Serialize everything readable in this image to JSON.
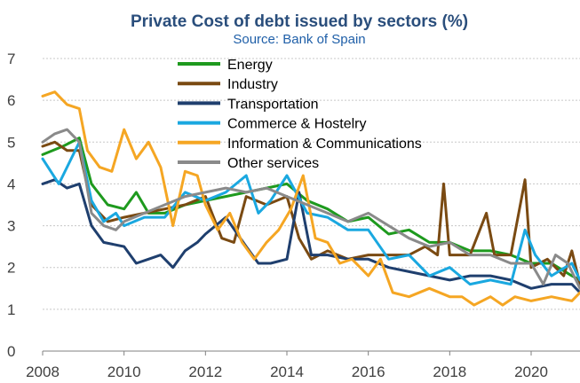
{
  "chart_data": {
    "type": "line",
    "title": "Private Cost of debt issued by sectors (%)",
    "subtitle": "Source: Bank of Spain",
    "xlabel": "",
    "ylabel": "",
    "xlim": [
      2008,
      2021.2
    ],
    "ylim": [
      0,
      7
    ],
    "x_ticks": [
      "2008",
      "2010",
      "2012",
      "2014",
      "2016",
      "2018",
      "2020"
    ],
    "y_ticks": [
      "0",
      "1",
      "2",
      "3",
      "4",
      "5",
      "6",
      "7"
    ],
    "grid": "horizontal-dashed",
    "legend_position": "top-center",
    "series": [
      {
        "name": "Energy",
        "color": "#1e9a1e",
        "x": [
          2008,
          2008.5,
          2008.9,
          2009.2,
          2009.6,
          2010,
          2010.3,
          2010.6,
          2011,
          2011.5,
          2012,
          2012.5,
          2013,
          2013.5,
          2014,
          2014.5,
          2015,
          2015.5,
          2016,
          2016.5,
          2017,
          2017.5,
          2018,
          2018.5,
          2019,
          2019.5,
          2020,
          2020.5,
          2021,
          2021.2
        ],
        "values": [
          4.7,
          4.9,
          5.1,
          4.0,
          3.5,
          3.4,
          3.8,
          3.3,
          3.3,
          3.5,
          3.6,
          3.7,
          3.8,
          3.9,
          4.0,
          3.6,
          3.4,
          3.1,
          3.2,
          2.8,
          2.9,
          2.6,
          2.6,
          2.4,
          2.4,
          2.3,
          2.1,
          2.1,
          1.8,
          1.7
        ]
      },
      {
        "name": "Industry",
        "color": "#7a4a12",
        "x": [
          2008,
          2008.3,
          2008.6,
          2008.9,
          2009.2,
          2009.6,
          2010,
          2010.5,
          2011,
          2011.5,
          2012,
          2012.4,
          2012.7,
          2013,
          2013.5,
          2014,
          2014.3,
          2014.6,
          2015,
          2015.5,
          2016,
          2016.5,
          2017,
          2017.4,
          2017.7,
          2017.85,
          2018,
          2018.5,
          2018.9,
          2019.1,
          2019.5,
          2019.85,
          2020,
          2020.4,
          2020.8,
          2021,
          2021.2
        ],
        "values": [
          4.9,
          5.0,
          4.8,
          4.8,
          3.5,
          3.1,
          3.2,
          3.3,
          3.4,
          3.5,
          3.7,
          2.7,
          2.6,
          3.7,
          3.5,
          3.7,
          2.7,
          2.2,
          2.4,
          2.2,
          2.3,
          2.3,
          2.3,
          2.5,
          2.3,
          4.0,
          2.3,
          2.3,
          3.3,
          2.3,
          2.3,
          4.1,
          2.0,
          2.2,
          1.8,
          2.4,
          1.6
        ]
      },
      {
        "name": "Transportation",
        "color": "#1f3f6e",
        "x": [
          2008,
          2008.3,
          2008.6,
          2008.9,
          2009.2,
          2009.5,
          2010,
          2010.3,
          2010.6,
          2010.9,
          2011.2,
          2011.5,
          2011.8,
          2012,
          2012.5,
          2013,
          2013.3,
          2013.6,
          2014,
          2014.3,
          2014.6,
          2015,
          2015.5,
          2016,
          2016.5,
          2017,
          2017.5,
          2018,
          2018.5,
          2019,
          2019.5,
          2020,
          2020.5,
          2021,
          2021.2
        ],
        "values": [
          4.0,
          4.1,
          3.9,
          4.0,
          3.0,
          2.6,
          2.5,
          2.1,
          2.2,
          2.3,
          2.0,
          2.4,
          2.6,
          2.8,
          3.2,
          2.5,
          2.1,
          2.1,
          2.2,
          3.8,
          2.3,
          2.3,
          2.2,
          2.2,
          2.0,
          1.9,
          1.8,
          1.7,
          1.8,
          1.8,
          1.7,
          1.5,
          1.6,
          1.6,
          1.4
        ]
      },
      {
        "name": "Commerce & Hostelry",
        "color": "#1aa8e0",
        "x": [
          2008,
          2008.4,
          2008.9,
          2009.2,
          2009.5,
          2009.8,
          2010,
          2010.5,
          2011,
          2011.5,
          2012,
          2012.5,
          2013,
          2013.3,
          2013.6,
          2014,
          2014.5,
          2015,
          2015.5,
          2016,
          2016.5,
          2017,
          2017.5,
          2018,
          2018.5,
          2019,
          2019.5,
          2019.85,
          2020.1,
          2020.5,
          2021,
          2021.2
        ],
        "values": [
          4.6,
          4.0,
          5.0,
          3.6,
          3.1,
          3.3,
          3.0,
          3.2,
          3.2,
          3.8,
          3.6,
          3.8,
          4.2,
          3.3,
          3.6,
          4.2,
          3.3,
          3.2,
          2.9,
          2.9,
          2.2,
          2.3,
          1.8,
          2.0,
          1.6,
          1.7,
          1.6,
          2.9,
          2.3,
          1.8,
          2.1,
          1.7
        ]
      },
      {
        "name": "Information & Communications",
        "color": "#f5a623",
        "x": [
          2008,
          2008.3,
          2008.6,
          2008.9,
          2009.1,
          2009.4,
          2009.7,
          2010,
          2010.3,
          2010.6,
          2010.9,
          2011.2,
          2011.5,
          2011.8,
          2012,
          2012.3,
          2012.6,
          2012.9,
          2013.2,
          2013.5,
          2013.8,
          2014.1,
          2014.4,
          2014.7,
          2015,
          2015.3,
          2015.6,
          2016,
          2016.3,
          2016.6,
          2017,
          2017.5,
          2018,
          2018.3,
          2018.6,
          2019,
          2019.3,
          2019.6,
          2020,
          2020.5,
          2021,
          2021.2
        ],
        "values": [
          6.1,
          6.2,
          5.9,
          5.8,
          4.8,
          4.4,
          4.3,
          5.3,
          4.6,
          5.0,
          4.4,
          3.0,
          4.3,
          4.2,
          3.5,
          2.9,
          3.3,
          2.6,
          2.2,
          2.6,
          2.9,
          3.4,
          4.2,
          2.7,
          2.6,
          2.1,
          2.2,
          1.8,
          2.2,
          1.4,
          1.3,
          1.5,
          1.3,
          1.3,
          1.1,
          1.3,
          1.1,
          1.3,
          1.2,
          1.3,
          1.2,
          1.4
        ]
      },
      {
        "name": "Other services",
        "color": "#8a8a8a",
        "x": [
          2008,
          2008.3,
          2008.6,
          2008.9,
          2009.2,
          2009.5,
          2009.8,
          2010,
          2010.5,
          2011,
          2011.5,
          2012,
          2012.5,
          2013,
          2013.5,
          2014,
          2014.5,
          2015,
          2015.5,
          2016,
          2016.5,
          2017,
          2017.5,
          2018,
          2018.5,
          2019,
          2019.5,
          2020,
          2020.3,
          2020.6,
          2020.9,
          2021.2
        ],
        "values": [
          5.0,
          5.2,
          5.3,
          5.0,
          3.3,
          3.0,
          2.9,
          3.1,
          3.3,
          3.5,
          3.7,
          3.8,
          3.9,
          3.8,
          3.9,
          3.7,
          3.5,
          3.3,
          3.1,
          3.3,
          3.0,
          2.7,
          2.5,
          2.6,
          2.3,
          2.3,
          2.1,
          2.1,
          1.6,
          2.3,
          2.1,
          1.5
        ]
      }
    ]
  }
}
